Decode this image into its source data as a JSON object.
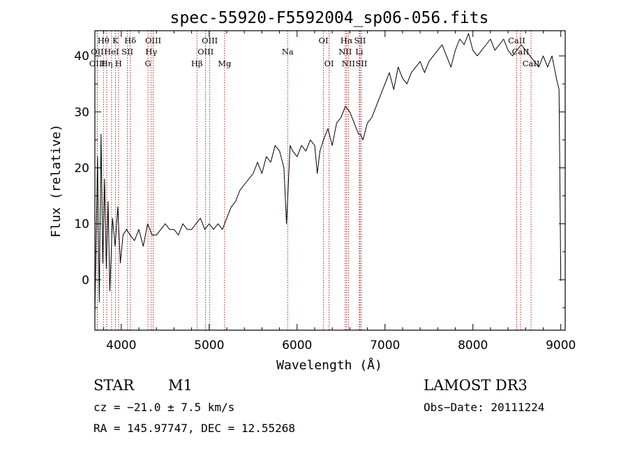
{
  "chart_data": {
    "type": "line",
    "title": "spec-55920-F5592004_sp06-056.fits",
    "xlabel": "Wavelength (Å)",
    "ylabel": "Flux (relative)",
    "xlim": [
      3700,
      9050
    ],
    "ylim": [
      -9,
      44.5
    ],
    "xticks": [
      4000,
      5000,
      6000,
      7000,
      8000,
      9000
    ],
    "yticks": [
      0,
      10,
      20,
      30,
      40
    ],
    "series": [
      {
        "name": "flux",
        "x": [
          3700,
          3730,
          3750,
          3770,
          3790,
          3810,
          3830,
          3850,
          3870,
          3900,
          3930,
          3960,
          3990,
          4020,
          4060,
          4100,
          4150,
          4200,
          4250,
          4300,
          4350,
          4400,
          4450,
          4500,
          4550,
          4600,
          4650,
          4700,
          4750,
          4800,
          4850,
          4900,
          4950,
          5000,
          5050,
          5100,
          5150,
          5200,
          5250,
          5300,
          5350,
          5400,
          5450,
          5500,
          5550,
          5600,
          5650,
          5700,
          5750,
          5800,
          5850,
          5880,
          5900,
          5920,
          5950,
          6000,
          6050,
          6100,
          6150,
          6200,
          6230,
          6260,
          6300,
          6350,
          6400,
          6450,
          6500,
          6550,
          6600,
          6650,
          6700,
          6720,
          6750,
          6800,
          6850,
          6900,
          6950,
          7000,
          7050,
          7100,
          7150,
          7200,
          7250,
          7300,
          7350,
          7400,
          7450,
          7500,
          7550,
          7600,
          7650,
          7700,
          7750,
          7800,
          7850,
          7900,
          7950,
          8000,
          8050,
          8100,
          8150,
          8200,
          8250,
          8300,
          8350,
          8400,
          8450,
          8500,
          8550,
          8600,
          8650,
          8700,
          8750,
          8800,
          8850,
          8900,
          8950,
          8980,
          9000
        ],
        "values": [
          -6,
          22,
          -4,
          26,
          3,
          18,
          2,
          14,
          -2,
          11,
          6,
          13,
          3,
          8,
          9,
          8,
          7,
          9,
          6,
          10,
          8,
          8,
          9,
          10,
          9,
          9,
          8,
          10,
          9,
          9,
          10,
          11,
          9,
          10,
          9,
          10,
          9,
          11,
          13,
          14,
          16,
          17,
          18,
          19,
          21,
          19,
          22,
          21,
          24,
          23,
          20,
          10,
          17,
          24,
          23,
          22,
          24,
          23,
          25,
          24,
          19,
          23,
          25,
          27,
          24,
          28,
          29,
          31,
          30,
          28,
          26,
          26,
          25,
          28,
          29,
          31,
          33,
          35,
          37,
          34,
          38,
          36,
          35,
          37,
          38,
          39,
          37,
          39,
          40,
          41,
          42,
          40,
          38,
          41,
          43,
          42,
          44,
          41,
          40,
          41,
          42,
          43,
          41,
          42,
          43,
          41,
          40,
          41,
          42,
          41,
          40,
          39,
          38,
          40,
          38,
          40,
          36,
          34,
          -0.2
        ]
      }
    ],
    "lines": [
      {
        "label": "Hθ",
        "x": 3797,
        "row": 1
      },
      {
        "label": "OII",
        "x": 3727,
        "row": 2
      },
      {
        "label": "OIII",
        "x": 3727,
        "row": 3
      },
      {
        "label": "K",
        "x": 3934,
        "row": 1
      },
      {
        "label": "Hη",
        "x": 3835,
        "row": 3
      },
      {
        "label": "HeI",
        "x": 3889,
        "row": 2
      },
      {
        "label": "SII",
        "x": 4070,
        "row": 2
      },
      {
        "label": "H",
        "x": 3969,
        "row": 3
      },
      {
        "label": "Hδ",
        "x": 4102,
        "row": 1
      },
      {
        "label": "OIII",
        "x": 4363,
        "row": 1
      },
      {
        "label": "Hγ",
        "x": 4341,
        "row": 2
      },
      {
        "label": "G",
        "x": 4304,
        "row": 3
      },
      {
        "label": "Hβ",
        "x": 4861,
        "row": 3
      },
      {
        "label": "OIII",
        "x": 5007,
        "row": 1
      },
      {
        "label": "OIII",
        "x": 4959,
        "row": 2
      },
      {
        "label": "Mg",
        "x": 5175,
        "row": 3
      },
      {
        "label": "Na",
        "x": 5893,
        "row": 2
      },
      {
        "label": "OI",
        "x": 6300,
        "row": 1
      },
      {
        "label": "OI",
        "x": 6364,
        "row": 3
      },
      {
        "label": "Hα",
        "x": 6563,
        "row": 1
      },
      {
        "label": "SII",
        "x": 6716,
        "row": 1
      },
      {
        "label": "NII",
        "x": 6548,
        "row": 2
      },
      {
        "label": "Li",
        "x": 6708,
        "row": 2
      },
      {
        "label": "NII",
        "x": 6584,
        "row": 3
      },
      {
        "label": "SII",
        "x": 6731,
        "row": 3
      },
      {
        "label": "CaII",
        "x": 8498,
        "row": 1
      },
      {
        "label": "CaII",
        "x": 8542,
        "row": 2
      },
      {
        "label": "CaII",
        "x": 8662,
        "row": 3
      }
    ]
  },
  "info": {
    "class": "STAR",
    "subclass": "M1",
    "survey": "LAMOST DR3",
    "cz": "cz = −21.0 ± 7.5 km/s",
    "obs_date": "Obs−Date: 20111224",
    "coords": "RA = 145.97747, DEC =  12.55268"
  }
}
